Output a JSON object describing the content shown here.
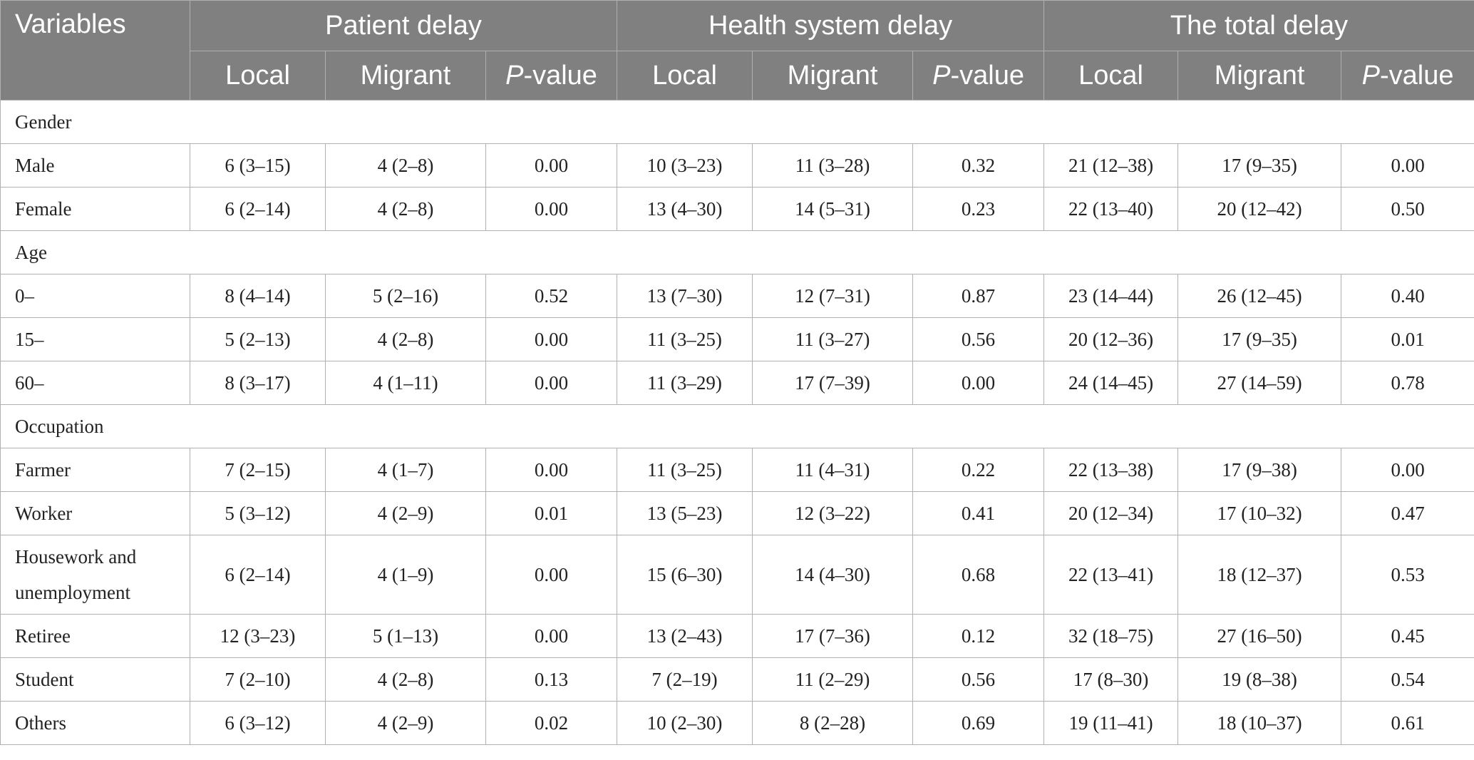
{
  "header": {
    "variables": "Variables",
    "groups": [
      "Patient delay",
      "Health system delay",
      "The total delay"
    ],
    "sub": {
      "local": "Local",
      "migrant": "Migrant",
      "p_italic": "P",
      "p_rest": "-value"
    }
  },
  "rows": [
    {
      "type": "group",
      "label": "Gender"
    },
    {
      "type": "data",
      "label": "Male",
      "values": [
        "6 (3–15)",
        "4 (2–8)",
        "0.00",
        "10 (3–23)",
        "11 (3–28)",
        "0.32",
        "21 (12–38)",
        "17 (9–35)",
        "0.00"
      ]
    },
    {
      "type": "data",
      "label": "Female",
      "values": [
        "6 (2–14)",
        "4 (2–8)",
        "0.00",
        "13 (4–30)",
        "14 (5–31)",
        "0.23",
        "22 (13–40)",
        "20 (12–42)",
        "0.50"
      ]
    },
    {
      "type": "group",
      "label": "Age"
    },
    {
      "type": "data",
      "label": "0–",
      "values": [
        "8 (4–14)",
        "5 (2–16)",
        "0.52",
        "13 (7–30)",
        "12 (7–31)",
        "0.87",
        "23 (14–44)",
        "26 (12–45)",
        "0.40"
      ]
    },
    {
      "type": "data",
      "label": "15–",
      "values": [
        "5 (2–13)",
        "4 (2–8)",
        "0.00",
        "11 (3–25)",
        "11 (3–27)",
        "0.56",
        "20 (12–36)",
        "17 (9–35)",
        "0.01"
      ]
    },
    {
      "type": "data",
      "label": "60–",
      "values": [
        "8 (3–17)",
        "4 (1–11)",
        "0.00",
        "11 (3–29)",
        "17 (7–39)",
        "0.00",
        "24 (14–45)",
        "27 (14–59)",
        "0.78"
      ]
    },
    {
      "type": "group",
      "label": "Occupation"
    },
    {
      "type": "data",
      "label": "Farmer",
      "values": [
        "7 (2–15)",
        "4 (1–7)",
        "0.00",
        "11 (3–25)",
        "11 (4–31)",
        "0.22",
        "22 (13–38)",
        "17 (9–38)",
        "0.00"
      ]
    },
    {
      "type": "data",
      "label": "Worker",
      "values": [
        "5 (3–12)",
        "4 (2–9)",
        "0.01",
        "13 (5–23)",
        "12 (3–22)",
        "0.41",
        "20 (12–34)",
        "17 (10–32)",
        "0.47"
      ]
    },
    {
      "type": "data",
      "label": "Housework and unemployment",
      "tall": true,
      "values": [
        "6 (2–14)",
        "4 (1–9)",
        "0.00",
        "15 (6–30)",
        "14 (4–30)",
        "0.68",
        "22 (13–41)",
        "18 (12–37)",
        "0.53"
      ]
    },
    {
      "type": "data",
      "label": "Retiree",
      "values": [
        "12 (3–23)",
        "5 (1–13)",
        "0.00",
        "13 (2–43)",
        "17 (7–36)",
        "0.12",
        "32 (18–75)",
        "27 (16–50)",
        "0.45"
      ]
    },
    {
      "type": "data",
      "label": "Student",
      "values": [
        "7 (2–10)",
        "4 (2–8)",
        "0.13",
        "7 (2–19)",
        "11 (2–29)",
        "0.56",
        "17 (8–30)",
        "19 (8–38)",
        "0.54"
      ]
    },
    {
      "type": "data",
      "label": "Others",
      "values": [
        "6 (3–12)",
        "4 (2–9)",
        "0.02",
        "10 (2–30)",
        "8 (2–28)",
        "0.69",
        "19 (11–41)",
        "18 (10–37)",
        "0.61"
      ]
    }
  ]
}
